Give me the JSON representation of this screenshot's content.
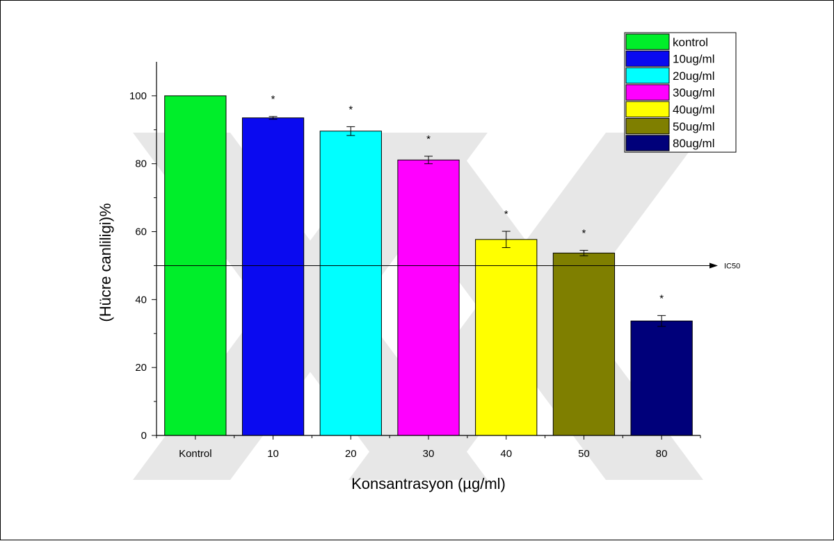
{
  "chart_data": {
    "type": "bar",
    "title": "",
    "xlabel": "Konsantrasyon (µg/ml)",
    "ylabel": "(Hücre canliligi)%",
    "ylim": [
      0,
      110
    ],
    "yticks": [
      "0",
      "20",
      "40",
      "60",
      "80",
      "100"
    ],
    "ytick_values": [
      0,
      20,
      40,
      60,
      80,
      100
    ],
    "categories": [
      "Kontrol",
      "10",
      "20",
      "30",
      "40",
      "50",
      "80"
    ],
    "values": [
      100,
      93.5,
      89.6,
      81.1,
      57.7,
      53.7,
      33.7
    ],
    "errors": [
      0,
      0.4,
      1.3,
      1.1,
      2.4,
      0.8,
      1.6
    ],
    "significance": [
      "",
      "*",
      "*",
      "*",
      "*",
      "*",
      "*"
    ],
    "legend": {
      "position": "top-right",
      "entries": [
        "kontrol",
        "10ug/ml",
        "20ug/ml",
        "30ug/ml",
        "40ug/ml",
        "50ug/ml",
        "80ug/ml"
      ]
    },
    "colors": [
      "#00ee2a",
      "#0a0af0",
      "#00ffff",
      "#ff00ff",
      "#ffff00",
      "#7f7f00",
      "#00007a"
    ],
    "reference_line": {
      "value": 50,
      "label": "IC50"
    },
    "grid": false
  }
}
